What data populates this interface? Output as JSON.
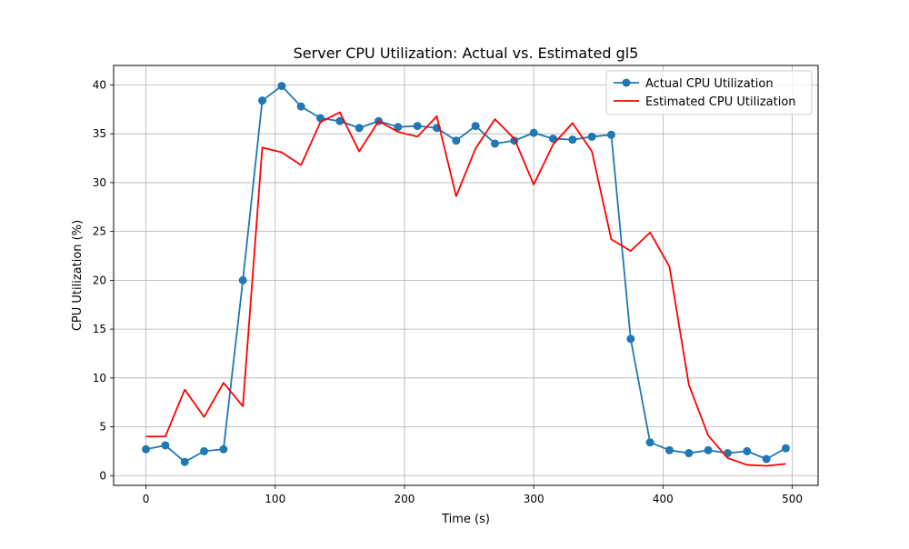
{
  "chart_data": {
    "type": "line",
    "title": "Server CPU Utilization: Actual vs. Estimated gl5",
    "xlabel": "Time (s)",
    "ylabel": "CPU Utilization (%)",
    "xlim": [
      -25,
      520
    ],
    "ylim": [
      -1,
      42
    ],
    "xticks": [
      0,
      100,
      200,
      300,
      400,
      500
    ],
    "yticks": [
      0,
      5,
      10,
      15,
      20,
      25,
      30,
      35,
      40
    ],
    "grid": true,
    "legend_position": "top-right",
    "x": [
      0,
      15,
      30,
      45,
      60,
      75,
      90,
      105,
      120,
      135,
      150,
      165,
      180,
      195,
      210,
      225,
      240,
      255,
      270,
      285,
      300,
      315,
      330,
      345,
      360,
      375,
      390,
      405,
      420,
      435,
      450,
      465,
      480,
      495
    ],
    "series": [
      {
        "name": "Actual CPU Utilization",
        "color": "#1f77b4",
        "marker": "circle",
        "values": [
          2.7,
          3.1,
          1.4,
          2.5,
          2.7,
          20.0,
          38.4,
          39.9,
          37.8,
          36.6,
          36.3,
          35.6,
          36.3,
          35.7,
          35.8,
          35.6,
          34.3,
          35.8,
          34.0,
          34.3,
          35.1,
          34.5,
          34.4,
          34.7,
          34.9,
          14.0,
          3.4,
          2.6,
          2.3,
          2.6,
          2.3,
          2.5,
          1.7,
          2.8
        ]
      },
      {
        "name": "Estimated CPU Utilization",
        "color": "#ff0000",
        "marker": "none",
        "values": [
          4.0,
          4.0,
          8.8,
          6.0,
          9.5,
          7.1,
          33.6,
          33.1,
          31.8,
          36.2,
          37.2,
          33.2,
          36.3,
          35.2,
          34.7,
          36.8,
          28.6,
          33.5,
          36.5,
          34.5,
          29.8,
          33.9,
          36.1,
          33.2,
          24.2,
          23.0,
          24.9,
          21.4,
          9.3,
          4.1,
          1.8,
          1.1,
          1.0,
          1.2
        ]
      }
    ]
  }
}
